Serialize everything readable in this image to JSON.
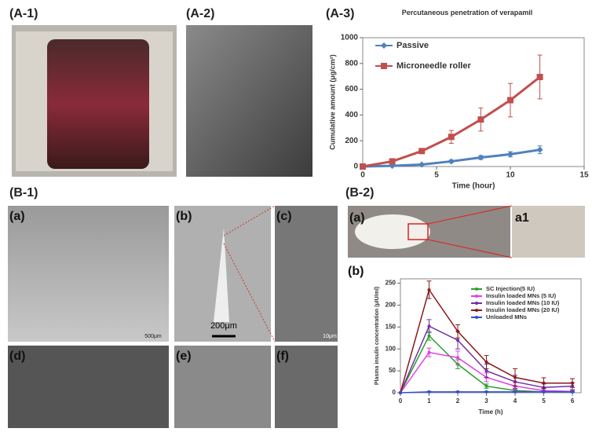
{
  "panels": [
    "(A-1)",
    "(A-2)",
    "(A-3)",
    "(B-1)",
    "(B-2)"
  ],
  "images": [
    "(a)",
    "(b)",
    "(c)",
    "(d)",
    "(e)",
    "(f)",
    "(a)",
    "a1",
    "(b)"
  ],
  "scale_bars": [
    "500μm",
    "200μm",
    "10μm"
  ],
  "chart_data": [
    {
      "type": "line",
      "title": "Percutaneous penetration of verapamil",
      "x_label": "Time (hour)",
      "y_label": "Cumulative amount (μg/cm²)",
      "x": [
        0,
        2,
        4,
        6,
        8,
        10,
        12
      ],
      "series": [
        {
          "name": "Passive",
          "color": "#4f81bd",
          "marker": "diamond",
          "values": [
            0,
            5,
            15,
            40,
            70,
            95,
            130
          ],
          "errors": [
            0,
            3,
            5,
            10,
            15,
            20,
            30
          ]
        },
        {
          "name": "Microneedle roller",
          "color": "#c0504d",
          "marker": "square",
          "values": [
            0,
            40,
            120,
            230,
            365,
            515,
            695
          ],
          "errors": [
            0,
            5,
            15,
            50,
            90,
            130,
            170
          ]
        }
      ],
      "xlim": [
        0,
        15
      ],
      "xticks": [
        0,
        5,
        10,
        15
      ],
      "ylim": [
        0,
        1000
      ],
      "yticks": [
        0,
        200,
        400,
        600,
        800,
        1000
      ],
      "legend": "upper left"
    },
    {
      "type": "line",
      "x_label": "Time (h)",
      "y_label": "Plasma insulin concentration (μIU/ml)",
      "x": [
        0,
        1,
        2,
        3,
        4,
        5,
        6
      ],
      "series": [
        {
          "name": "SC Injection(5 IU)",
          "color": "#2ca02c",
          "marker": "circle",
          "values": [
            0,
            130,
            65,
            15,
            5,
            2,
            2
          ],
          "errors": [
            0,
            10,
            10,
            5,
            3,
            2,
            2
          ]
        },
        {
          "name": "Insulin loaded MNs (5 IU)",
          "color": "#e040e0",
          "marker": "circle",
          "values": [
            0,
            92,
            80,
            35,
            15,
            5,
            3
          ],
          "errors": [
            0,
            10,
            15,
            10,
            8,
            4,
            3
          ]
        },
        {
          "name": "Insulin loaded MNs (10 IU)",
          "color": "#7030a0",
          "marker": "circle",
          "values": [
            0,
            152,
            120,
            50,
            25,
            12,
            15
          ],
          "errors": [
            0,
            15,
            20,
            15,
            15,
            8,
            8
          ]
        },
        {
          "name": "Insulin loaded MNs (20 IU)",
          "color": "#8b1a1a",
          "marker": "circle",
          "values": [
            0,
            235,
            140,
            70,
            35,
            22,
            22
          ],
          "errors": [
            0,
            20,
            15,
            15,
            20,
            12,
            10
          ]
        },
        {
          "name": "Unloaded MNs",
          "color": "#3050d0",
          "marker": "circle",
          "values": [
            0,
            2,
            2,
            2,
            2,
            2,
            2
          ],
          "errors": [
            0,
            1,
            1,
            1,
            1,
            1,
            1
          ]
        }
      ],
      "xlim": [
        0,
        6.3
      ],
      "xticks": [
        0,
        1,
        2,
        3,
        4,
        5,
        6
      ],
      "ylim": [
        0,
        260
      ],
      "yticks": [
        0,
        50,
        100,
        150,
        200,
        250
      ],
      "legend": "upper right"
    }
  ]
}
